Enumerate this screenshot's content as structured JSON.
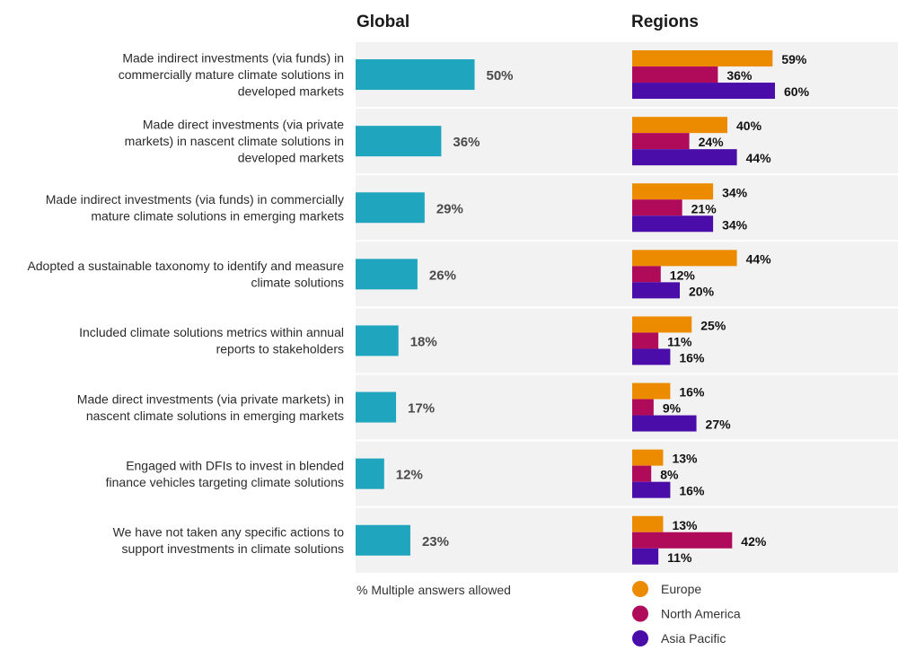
{
  "chart_data": {
    "type": "bar",
    "orientation": "horizontal",
    "panels": {
      "global": {
        "title": "Global"
      },
      "regions": {
        "title": "Regions"
      }
    },
    "categories": [
      [
        "Made indirect investments (via funds) in",
        "commercially mature climate solutions in",
        "developed markets"
      ],
      [
        "Made direct investments (via private",
        "markets) in nascent climate solutions in",
        "developed markets"
      ],
      [
        "Made indirect investments (via funds) in commercially",
        "mature climate solutions in emerging markets"
      ],
      [
        "Adopted a sustainable taxonomy to identify and measure",
        "climate solutions"
      ],
      [
        "Included climate solutions metrics within annual",
        "reports to stakeholders"
      ],
      [
        "Made direct investments (via private markets) in",
        "nascent climate solutions in emerging markets"
      ],
      [
        "Engaged with DFIs to invest in blended",
        "finance vehicles targeting climate solutions"
      ],
      [
        "We have not taken any specific actions to",
        "support investments in climate solutions"
      ]
    ],
    "global_values": [
      50,
      36,
      29,
      26,
      18,
      17,
      12,
      23
    ],
    "series": [
      {
        "name": "Europe",
        "color": "#ED8B00",
        "values": [
          59,
          40,
          34,
          44,
          25,
          16,
          13,
          13
        ]
      },
      {
        "name": "North America",
        "color": "#B00A5A",
        "values": [
          36,
          24,
          21,
          12,
          11,
          9,
          8,
          42
        ]
      },
      {
        "name": "Asia Pacific",
        "color": "#4A0DAA",
        "values": [
          60,
          44,
          34,
          20,
          16,
          27,
          16,
          11
        ]
      }
    ],
    "global_color": "#1FA6BE",
    "value_suffix": "%",
    "xlim": [
      0,
      100
    ],
    "note": "% Multiple answers allowed",
    "legend_position": "bottom-right"
  }
}
